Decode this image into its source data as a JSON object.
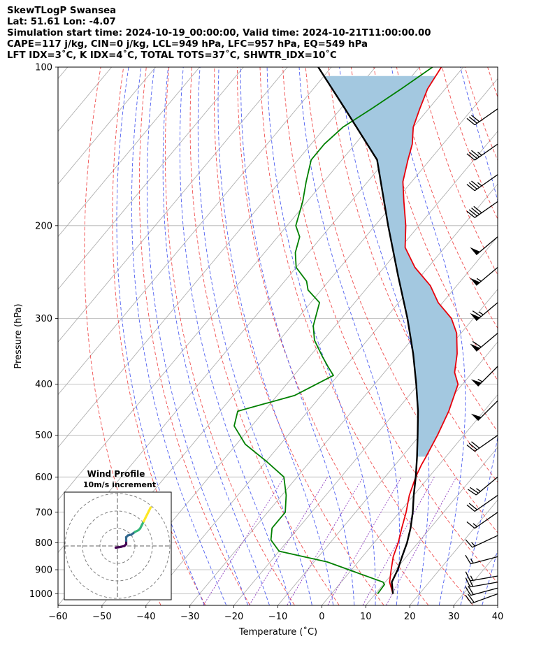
{
  "header": {
    "line1": "SkewTLogP Swansea",
    "line2": "Lat: 51.61   Lon: -4.07",
    "line3": "Simulation start time: 2024-10-19_00:00:00, Valid time: 2024-10-21T11:00:00.00",
    "line4": "CAPE=117 j/kg, CIN=0 j/kg, LCL=949 hPa, LFC=957 hPa, EQ=549 hPa",
    "line5": "LFT IDX=3˚C, K IDX=4˚C, TOTAL TOTS=37˚C, SHWTR_IDX=10˚C"
  },
  "chart_data": {
    "type": "line",
    "subtype": "skew-t log-p",
    "xlabel": "Temperature (˚C)",
    "ylabel": "Pressure (hPa)",
    "xlim": [
      -60,
      40
    ],
    "ylim": [
      1050,
      100
    ],
    "y_scale": "log",
    "grid": true,
    "x_ticks": [
      "−60",
      "−50",
      "−40",
      "−30",
      "−20",
      "−10",
      "0",
      "10",
      "20",
      "30",
      "40"
    ],
    "y_ticks": [
      "100",
      "200",
      "300",
      "400",
      "500",
      "600",
      "700",
      "800",
      "900",
      "1000"
    ],
    "series": [
      {
        "role": "temperature",
        "color": "#e8000b",
        "points": [
          [
            14,
            1000
          ],
          [
            11,
            950
          ],
          [
            9,
            900
          ],
          [
            7,
            850
          ],
          [
            5.5,
            800
          ],
          [
            3.5,
            750
          ],
          [
            1.5,
            700
          ],
          [
            -1,
            650
          ],
          [
            -3,
            600
          ],
          [
            -4,
            570
          ],
          [
            -4.5,
            550
          ],
          [
            -6,
            500
          ],
          [
            -8,
            450
          ],
          [
            -11,
            400
          ],
          [
            -14,
            380
          ],
          [
            -17,
            350
          ],
          [
            -21,
            320
          ],
          [
            -25,
            300
          ],
          [
            -31,
            280
          ],
          [
            -36,
            260
          ],
          [
            -43,
            240
          ],
          [
            -49,
            220
          ],
          [
            -53,
            200
          ],
          [
            -58,
            180
          ],
          [
            -62,
            165
          ],
          [
            -65,
            150
          ],
          [
            -67,
            140
          ],
          [
            -70,
            130
          ],
          [
            -72,
            120
          ],
          [
            -74,
            110
          ],
          [
            -75,
            100
          ]
        ]
      },
      {
        "role": "dewpoint",
        "color": "#008000",
        "points": [
          [
            10.5,
            1000
          ],
          [
            10.3,
            960
          ],
          [
            9.5,
            950
          ],
          [
            -7,
            870
          ],
          [
            -20,
            830
          ],
          [
            -24,
            790
          ],
          [
            -26,
            750
          ],
          [
            -26,
            700
          ],
          [
            -29,
            650
          ],
          [
            -33,
            600
          ],
          [
            -40,
            560
          ],
          [
            -48,
            520
          ],
          [
            -54,
            480
          ],
          [
            -56,
            450
          ],
          [
            -46,
            420
          ],
          [
            -41,
            385
          ],
          [
            -44,
            370
          ],
          [
            -47,
            355
          ],
          [
            -52,
            330
          ],
          [
            -55,
            310
          ],
          [
            -58,
            280
          ],
          [
            -63,
            265
          ],
          [
            -65,
            255
          ],
          [
            -70,
            240
          ],
          [
            -73,
            225
          ],
          [
            -75,
            210
          ],
          [
            -78,
            200
          ],
          [
            -81,
            180
          ],
          [
            -84,
            165
          ],
          [
            -87,
            150
          ],
          [
            -87,
            140
          ],
          [
            -86,
            130
          ],
          [
            -83,
            120
          ],
          [
            -80,
            110
          ],
          [
            -77,
            100
          ]
        ]
      },
      {
        "role": "parcel",
        "color": "#000000",
        "points": [
          [
            14,
            1000
          ],
          [
            11.5,
            950
          ],
          [
            10.5,
            900
          ],
          [
            9,
            850
          ],
          [
            7.5,
            800
          ],
          [
            5.5,
            750
          ],
          [
            3,
            700
          ],
          [
            0,
            650
          ],
          [
            -3,
            600
          ],
          [
            -6.5,
            550
          ],
          [
            -10.5,
            500
          ],
          [
            -15,
            450
          ],
          [
            -20.5,
            400
          ],
          [
            -27,
            350
          ],
          [
            -35,
            300
          ],
          [
            -45,
            250
          ],
          [
            -57,
            200
          ],
          [
            -72,
            150
          ],
          [
            -89,
            120
          ],
          [
            -103,
            100
          ]
        ]
      }
    ],
    "shaded_cape_region": {
      "color": "#a3c8e0",
      "between": [
        "parcel",
        "temperature"
      ],
      "from_hpa": 549,
      "to_hpa": 100
    },
    "wind_barbs": [
      {
        "p": 1000,
        "speed_kt": 20,
        "dir_deg": 250
      },
      {
        "p": 975,
        "speed_kt": 20,
        "dir_deg": 255
      },
      {
        "p": 950,
        "speed_kt": 20,
        "dir_deg": 260
      },
      {
        "p": 925,
        "speed_kt": 15,
        "dir_deg": 260
      },
      {
        "p": 850,
        "speed_kt": 15,
        "dir_deg": 255
      },
      {
        "p": 775,
        "speed_kt": 15,
        "dir_deg": 245
      },
      {
        "p": 700,
        "speed_kt": 15,
        "dir_deg": 235
      },
      {
        "p": 650,
        "speed_kt": 20,
        "dir_deg": 235
      },
      {
        "p": 600,
        "speed_kt": 25,
        "dir_deg": 230
      },
      {
        "p": 500,
        "speed_kt": 30,
        "dir_deg": 235
      },
      {
        "p": 430,
        "speed_kt": 50,
        "dir_deg": 225
      },
      {
        "p": 370,
        "speed_kt": 55,
        "dir_deg": 225
      },
      {
        "p": 320,
        "speed_kt": 60,
        "dir_deg": 230
      },
      {
        "p": 280,
        "speed_kt": 65,
        "dir_deg": 230
      },
      {
        "p": 240,
        "speed_kt": 55,
        "dir_deg": 230
      },
      {
        "p": 210,
        "speed_kt": 50,
        "dir_deg": 230
      },
      {
        "p": 180,
        "speed_kt": 40,
        "dir_deg": 235
      },
      {
        "p": 160,
        "speed_kt": 35,
        "dir_deg": 235
      },
      {
        "p": 140,
        "speed_kt": 35,
        "dir_deg": 235
      },
      {
        "p": 120,
        "speed_kt": 30,
        "dir_deg": 235
      }
    ],
    "hodograph": {
      "title": "Wind Profile",
      "subtitle": "10m/s increment",
      "rings_ms": [
        10,
        20,
        30
      ],
      "points_ms": [
        [
          -1,
          -1
        ],
        [
          2,
          -0.5
        ],
        [
          4,
          0
        ],
        [
          5,
          1
        ],
        [
          5,
          3
        ],
        [
          5,
          5
        ],
        [
          6,
          6
        ],
        [
          8,
          6.5
        ],
        [
          10,
          8
        ],
        [
          12,
          9
        ],
        [
          13,
          10
        ],
        [
          14,
          12
        ],
        [
          15,
          14
        ],
        [
          16,
          16
        ],
        [
          17,
          18
        ],
        [
          18,
          20
        ],
        [
          19,
          22
        ]
      ],
      "colormap": [
        "#440154",
        "#31688e",
        "#35b779",
        "#fde725"
      ]
    }
  }
}
